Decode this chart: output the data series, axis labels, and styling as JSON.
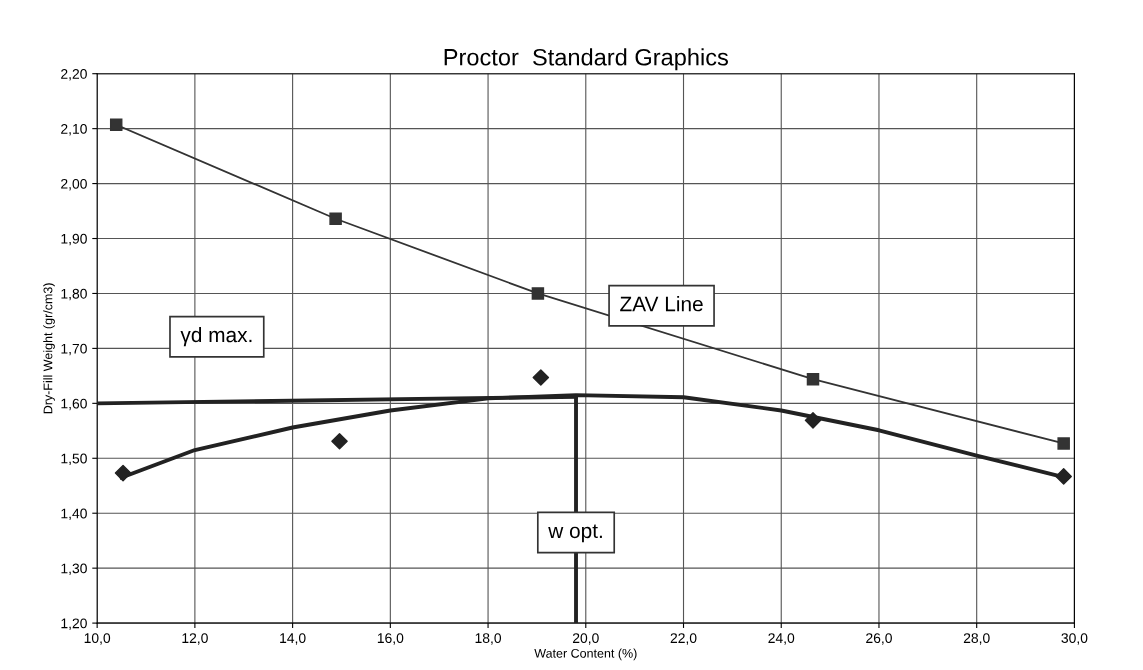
{
  "chart_data": {
    "type": "line",
    "title": "Proctor  Standard Graphics",
    "xlabel": "Water Content (%)",
    "ylabel": "Dry-Fill Weight (gr/cm3)",
    "xlim": [
      10,
      30
    ],
    "ylim": [
      1.2,
      2.2
    ],
    "xticks": [
      {
        "value": 10,
        "label": "10,0"
      },
      {
        "value": 12,
        "label": "12,0"
      },
      {
        "value": 14,
        "label": "14,0"
      },
      {
        "value": 16,
        "label": "16,0"
      },
      {
        "value": 18,
        "label": "18,0"
      },
      {
        "value": 20,
        "label": "20,0"
      },
      {
        "value": 22,
        "label": "22,0"
      },
      {
        "value": 24,
        "label": "24,0"
      },
      {
        "value": 26,
        "label": "26,0"
      },
      {
        "value": 28,
        "label": "28,0"
      },
      {
        "value": 30,
        "label": "30,0"
      }
    ],
    "yticks": [
      {
        "value": 1.2,
        "label": "1,20"
      },
      {
        "value": 1.3,
        "label": "1,30"
      },
      {
        "value": 1.4,
        "label": "1,40"
      },
      {
        "value": 1.5,
        "label": "1,50"
      },
      {
        "value": 1.6,
        "label": "1,60"
      },
      {
        "value": 1.7,
        "label": "1,70"
      },
      {
        "value": 1.8,
        "label": "1,80"
      },
      {
        "value": 1.9,
        "label": "1,90"
      },
      {
        "value": 2.0,
        "label": "2,00"
      },
      {
        "value": 2.1,
        "label": "2,10"
      },
      {
        "value": 2.2,
        "label": "2,20"
      }
    ],
    "grid": true,
    "series": [
      {
        "name": "ZAV Line",
        "color": "#333333",
        "marker": "square",
        "line_style": "solid",
        "x": [
          10.39,
          14.88,
          19.02,
          24.65,
          29.78
        ],
        "values": [
          2.107,
          1.936,
          1.8,
          1.644,
          1.527
        ]
      },
      {
        "type": "scatter",
        "color": "#222222",
        "marker": "diamond",
        "x": [
          10.53,
          14.96,
          19.08,
          24.65,
          29.78
        ],
        "values": [
          1.473,
          1.531,
          1.647,
          1.569,
          1.467
        ]
      },
      {
        "color": "#222222",
        "marker": "none",
        "line_style": "solid",
        "x": [
          10.5,
          12,
          14,
          16,
          18,
          19.8,
          22,
          24,
          26,
          28,
          29.8
        ],
        "values": [
          1.465,
          1.515,
          1.556,
          1.587,
          1.609,
          1.615,
          1.611,
          1.587,
          1.551,
          1.505,
          1.465
        ]
      },
      {
        "name": "γd max.",
        "color": "#222222",
        "marker": "none",
        "line_style": "solid",
        "x": [
          10,
          19.8
        ],
        "values": [
          1.6,
          1.612
        ]
      },
      {
        "name": "w opt.",
        "color": "#222222",
        "marker": "none",
        "line_style": "solid",
        "x": [
          19.8,
          19.8
        ],
        "values": [
          1.2,
          1.612
        ]
      }
    ]
  }
}
